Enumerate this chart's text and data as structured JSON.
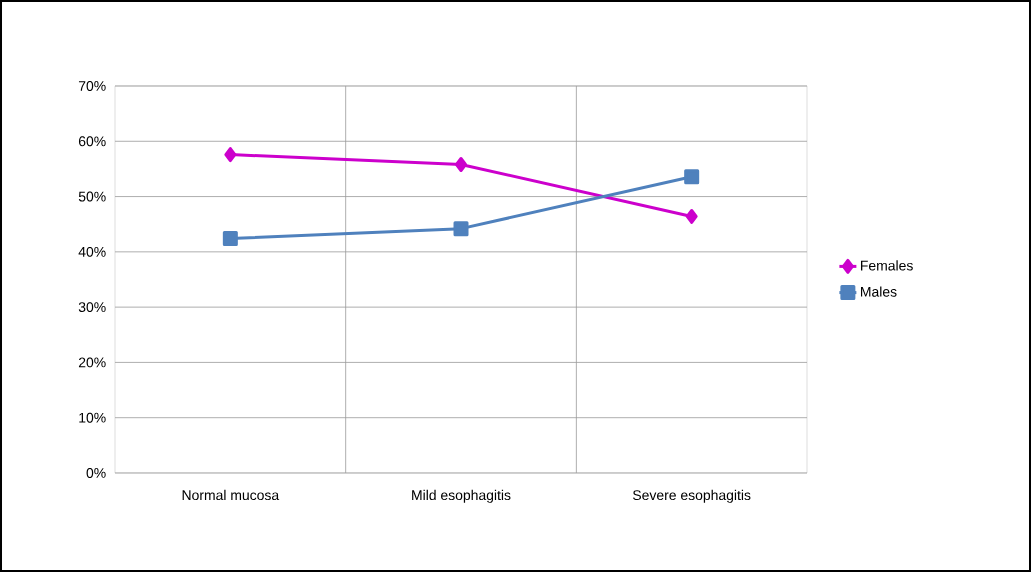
{
  "chart_data": {
    "type": "line",
    "categories": [
      "Normal mucosa",
      "Mild esophagitis",
      "Severe esophagitis"
    ],
    "series": [
      {
        "name": "Females",
        "color": "#cc00cc",
        "marker": "diamond",
        "values": [
          57.6,
          55.8,
          46.4
        ]
      },
      {
        "name": "Males",
        "color": "#4f81bd",
        "marker": "square",
        "values": [
          42.4,
          44.2,
          53.6
        ]
      }
    ],
    "ylim": [
      0,
      70
    ],
    "yticks": [
      {
        "value": 0,
        "label": "0%"
      },
      {
        "value": 10,
        "label": "10%"
      },
      {
        "value": 20,
        "label": "20%"
      },
      {
        "value": 30,
        "label": "30%"
      },
      {
        "value": 40,
        "label": "40%"
      },
      {
        "value": 50,
        "label": "50%"
      },
      {
        "value": 60,
        "label": "60%"
      },
      {
        "value": 70,
        "label": "70%"
      }
    ],
    "grid": true,
    "legend": "right"
  }
}
